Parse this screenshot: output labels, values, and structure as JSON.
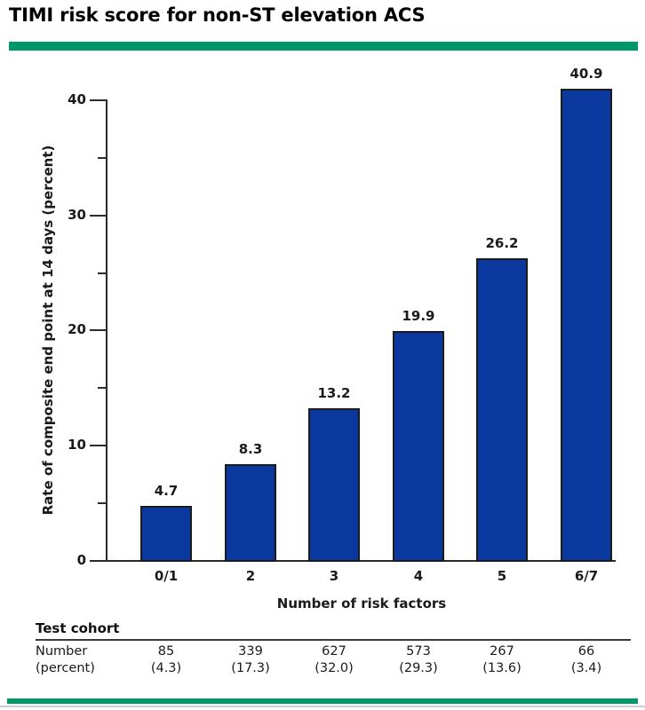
{
  "title": "TIMI risk score for non-ST elevation ACS",
  "colors": {
    "accent_green": "#009868",
    "bar_blue": "#0a389f",
    "axis": "#2b2b2b"
  },
  "chart_data": {
    "type": "bar",
    "categories": [
      "0/1",
      "2",
      "3",
      "4",
      "5",
      "6/7"
    ],
    "values": [
      4.7,
      8.3,
      13.2,
      19.9,
      26.2,
      40.9
    ],
    "bar_labels": [
      "4.7",
      "8.3",
      "13.2",
      "19.9",
      "26.2",
      "40.9"
    ],
    "xlabel": "Number of risk factors",
    "ylabel": "Rate of composite end point at 14 days (percent)",
    "ylim": [
      0,
      40
    ],
    "y_ticks": [
      0,
      10,
      20,
      30,
      40
    ],
    "y_tick_labels": [
      "0",
      "10",
      "20",
      "30",
      "40"
    ],
    "y_minor_ticks": [
      5,
      15,
      25,
      35
    ],
    "grid": false,
    "legend": false,
    "data_labels_shown": true
  },
  "table": {
    "header": "Test cohort",
    "row_label_line1": "Number",
    "row_label_line2": "(percent)",
    "numbers": [
      "85",
      "339",
      "627",
      "573",
      "267",
      "66"
    ],
    "percents": [
      "(4.3)",
      "(17.3)",
      "(32.0)",
      "(29.3)",
      "(13.6)",
      "(3.4)"
    ]
  }
}
